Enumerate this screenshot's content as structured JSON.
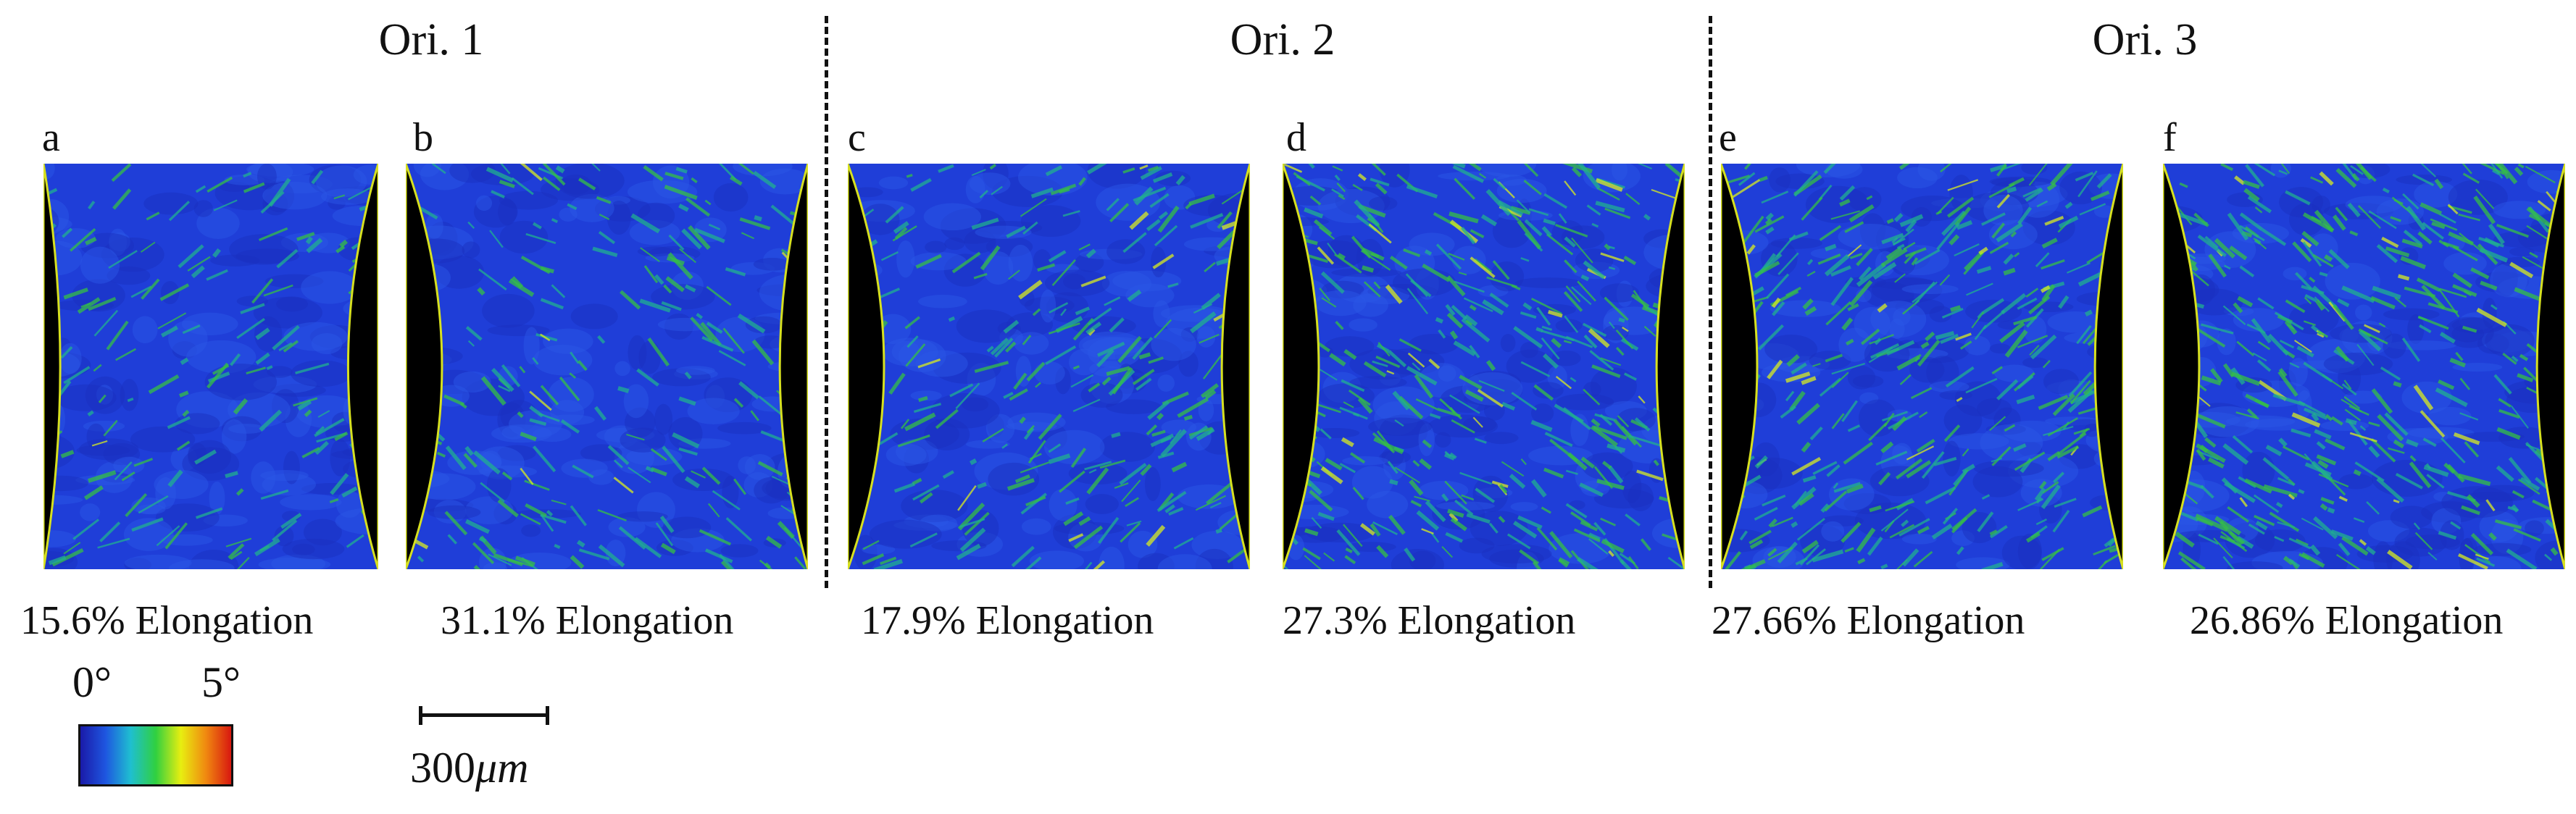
{
  "groups": [
    {
      "title": "Ori. 1"
    },
    {
      "title": "Ori. 2"
    },
    {
      "title": "Ori. 3"
    }
  ],
  "panels": [
    {
      "label": "a",
      "caption": "15.6% Elongation",
      "strain_level": 0.15
    },
    {
      "label": "b",
      "caption": "31.1% Elongation",
      "strain_level": 0.3
    },
    {
      "label": "c",
      "caption": "17.9% Elongation",
      "strain_level": 0.35
    },
    {
      "label": "d",
      "caption": "27.3% Elongation",
      "strain_level": 0.65
    },
    {
      "label": "e",
      "caption": "27.66% Elongation",
      "strain_level": 0.6
    },
    {
      "label": "f",
      "caption": "26.86% Elongation",
      "strain_level": 0.7
    }
  ],
  "colorbar": {
    "min_label": "0°",
    "max_label": "5°",
    "colors": [
      "#1a1aa8",
      "#1e56e0",
      "#1fbfd0",
      "#30d040",
      "#e8ee10",
      "#f08810",
      "#d81810"
    ]
  },
  "scalebar": {
    "value": "300",
    "unit_prefix": "",
    "unit": "μm"
  }
}
